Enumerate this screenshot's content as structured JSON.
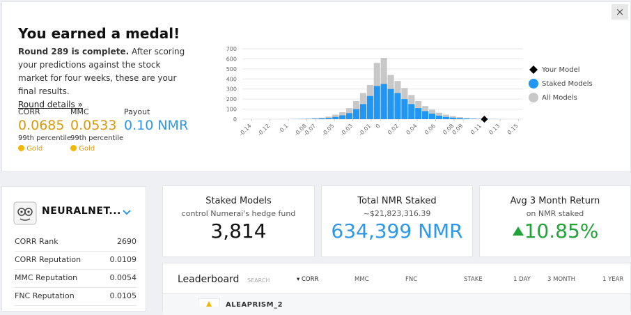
{
  "close": "×",
  "medal": {
    "title": "You earned a medal!",
    "round": "Round 289 is complete.",
    "text": "After scoring your predictions against the stock market for four weeks, these are your final results.",
    "link": "Round details »",
    "metrics": [
      {
        "label": "CORR",
        "value": "0.0685",
        "percentile": "99th percentile",
        "badge": "Gold"
      },
      {
        "label": "MMC",
        "value": "0.0533",
        "percentile": "99th percentile",
        "badge": "Gold"
      },
      {
        "label": "Payout",
        "value": "0.10 NMR"
      }
    ]
  },
  "chart_data": {
    "type": "histogram",
    "bins": [
      -0.15,
      -0.1425,
      -0.135,
      -0.1275,
      -0.12,
      -0.1125,
      -0.105,
      -0.0975,
      -0.09,
      -0.0825,
      -0.075,
      -0.0675,
      -0.06,
      -0.0525,
      -0.045,
      -0.0375,
      -0.03,
      -0.0225,
      -0.015,
      -0.0075,
      0,
      0.0075,
      0.015,
      0.0225,
      0.03,
      0.0375,
      0.045,
      0.0525,
      0.06,
      0.0675,
      0.075,
      0.0825,
      0.09,
      0.0975,
      0.105,
      0.1125,
      0.12,
      0.1275,
      0.135,
      0.1425,
      0.15
    ],
    "series": [
      {
        "name": "All Models",
        "color": "#c8c8c8",
        "values": [
          0,
          0,
          0,
          0,
          0,
          1,
          1,
          2,
          3,
          5,
          10,
          15,
          25,
          45,
          70,
          110,
          180,
          260,
          340,
          560,
          610,
          440,
          380,
          310,
          240,
          180,
          130,
          95,
          65,
          45,
          30,
          20,
          12,
          8,
          5,
          3,
          2,
          1,
          0,
          0
        ]
      },
      {
        "name": "Staked Models",
        "color": "#2196f3",
        "values": [
          0,
          0,
          0,
          0,
          0,
          0,
          0,
          1,
          2,
          3,
          5,
          8,
          12,
          22,
          38,
          60,
          100,
          150,
          230,
          330,
          350,
          300,
          260,
          200,
          150,
          110,
          80,
          55,
          35,
          22,
          15,
          10,
          6,
          4,
          2,
          1,
          1,
          0,
          0,
          0
        ]
      }
    ],
    "marker": {
      "name": "Your Model",
      "x": 0.113,
      "y": 0,
      "color": "#000000"
    },
    "xlim": [
      -0.15,
      0.155
    ],
    "ylim": [
      0,
      700
    ],
    "xticks": [
      -0.14,
      -0.12,
      -0.1,
      -0.08,
      -0.07,
      -0.05,
      -0.03,
      -0.01,
      0,
      0.02,
      0.04,
      0.06,
      0.08,
      0.09,
      0.11,
      0.13,
      0.15
    ],
    "yticks": [
      0,
      100,
      200,
      300,
      400,
      500,
      600,
      700
    ],
    "grid": true
  },
  "profile": {
    "name": "NEURALNET...",
    "stats": [
      {
        "label": "CORR Rank",
        "value": "2690"
      },
      {
        "label": "CORR Reputation",
        "value": "0.0109"
      },
      {
        "label": "MMC Reputation",
        "value": "0.0054"
      },
      {
        "label": "FNC Reputation",
        "value": "0.0105"
      }
    ]
  },
  "cards": [
    {
      "title": "Staked Models",
      "subtitle": "control Numerai's hedge fund",
      "value": "3,814"
    },
    {
      "title": "Total NMR Staked",
      "subtitle": "~$21,823,316.39",
      "value": "634,399 NMR"
    },
    {
      "title": "Avg 3 Month Return",
      "subtitle": "on NMR staked",
      "value": "10.85%"
    }
  ],
  "leaderboard": {
    "title": "Leaderboard",
    "search": "SEARCH",
    "columns": [
      "CORR",
      "MMC",
      "FNC",
      "STAKE",
      "1 DAY",
      "3 MONTH",
      "1 YEAR"
    ],
    "rows": [
      {
        "name": "ALEAPRISM_2"
      }
    ]
  }
}
